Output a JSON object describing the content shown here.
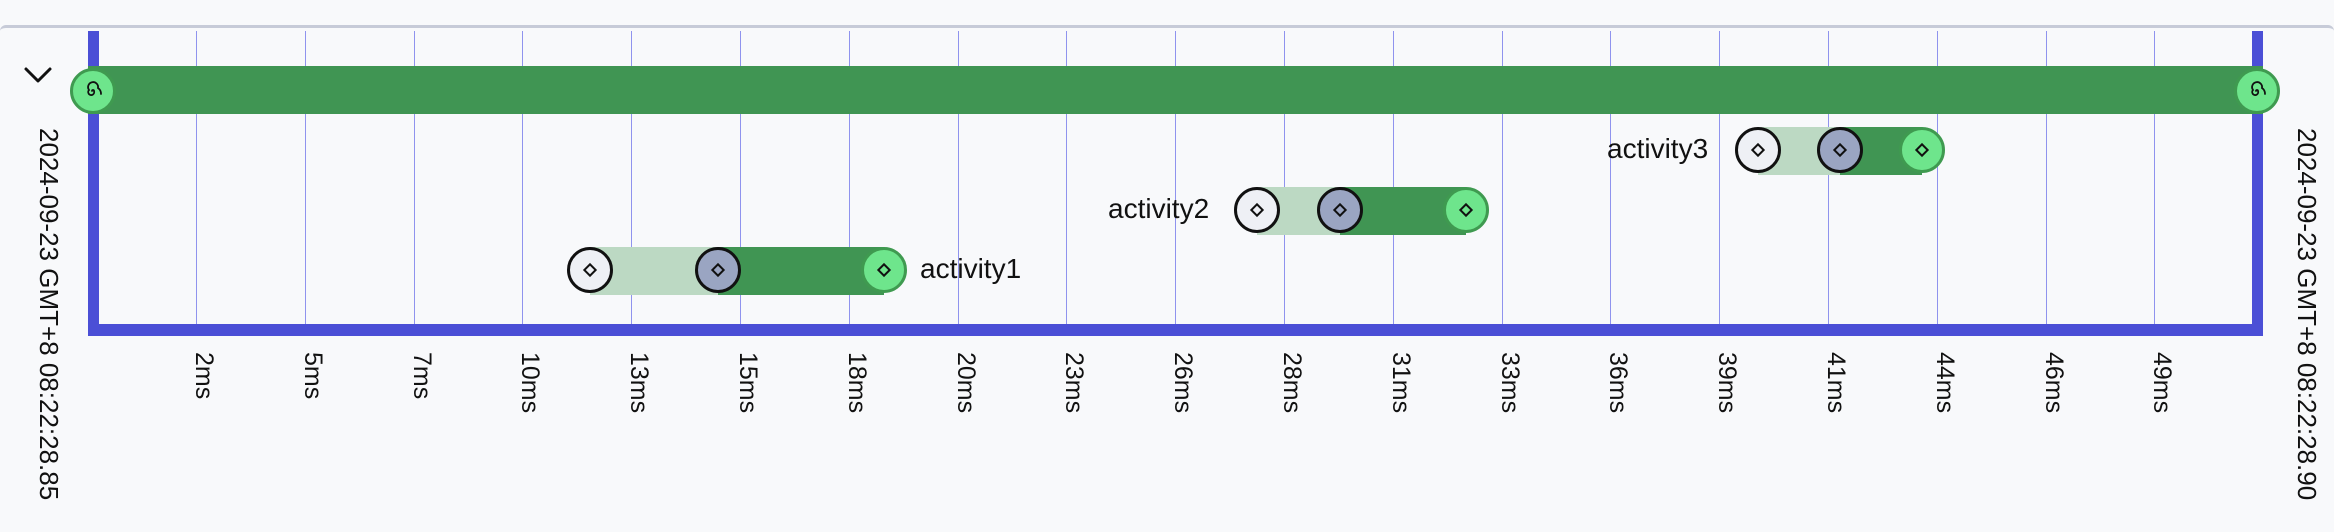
{
  "timeline": {
    "start_time": "2024-09-23 GMT+8 08:22:28.85",
    "end_time": "2024-09-23 GMT+8 08:22:28.90",
    "ticks": [
      "2ms",
      "5ms",
      "7ms",
      "10ms",
      "13ms",
      "15ms",
      "18ms",
      "20ms",
      "23ms",
      "26ms",
      "28ms",
      "31ms",
      "33ms",
      "36ms",
      "39ms",
      "41ms",
      "44ms",
      "46ms",
      "49ms"
    ],
    "activities": [
      {
        "label": "activity1"
      },
      {
        "label": "activity2"
      },
      {
        "label": "activity3"
      }
    ]
  },
  "colors": {
    "frame": "#4b4fd6",
    "grid": "#8f93ee",
    "bar": "#409553",
    "bar_light": "#bcd9c3",
    "node_end": "#6ee58c",
    "node_mid": "#9aa5c2",
    "node_start": "#eef0f5"
  },
  "icons": {
    "collapse": "chevron-down-icon",
    "root": "spiral-icon",
    "event": "diamond-icon"
  }
}
